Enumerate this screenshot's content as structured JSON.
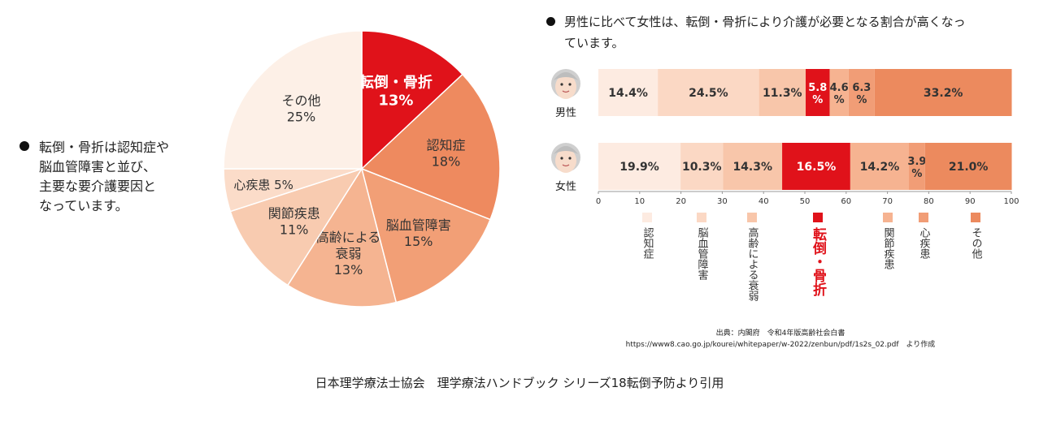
{
  "left_note": {
    "lines": [
      "転倒・骨折は認知症や",
      "脳血管障害と並び、",
      "主要な要介護要因と",
      "なっています。"
    ]
  },
  "right_title": {
    "line1": "男性に比べて女性は、転倒・骨折により介護が必要となる割合が高くなっ",
    "line2": "ています。"
  },
  "source": {
    "line1": "出典：内閣府　令和4年版高齢社会白書",
    "line2": "https://www8.cao.go.jp/kourei/whitepaper/w-2022/zenbun/pdf/1s2s_02.pdf　より作成"
  },
  "citation": "日本理学療法士協会　理学療法ハンドブック シリーズ18転倒予防より引用",
  "chart_data": [
    {
      "type": "pie",
      "slices": [
        {
          "label": "転倒・骨折",
          "value": 13,
          "display": "13%",
          "color": "#e0121a",
          "text_color": "#ffffff"
        },
        {
          "label": "認知症",
          "value": 18,
          "display": "18%",
          "color": "#ee8a5f",
          "text_color": "#333333"
        },
        {
          "label": "脳血管障害",
          "value": 15,
          "display": "15%",
          "color": "#f29f76",
          "text_color": "#333333"
        },
        {
          "label": "高齢による衰弱",
          "label_lines": [
            "高齢による",
            "衰弱"
          ],
          "value": 13,
          "display": "13%",
          "color": "#f5b491",
          "text_color": "#333333"
        },
        {
          "label": "関節疾患",
          "value": 11,
          "display": "11%",
          "color": "#f8cbb0",
          "text_color": "#333333"
        },
        {
          "label": "心疾患",
          "value": 5,
          "display": "心疾患 5%",
          "color": "#fbdcc9",
          "text_color": "#333333"
        },
        {
          "label": "その他",
          "value": 25,
          "display": "25%",
          "color": "#fdf0e7",
          "text_color": "#333333"
        }
      ]
    },
    {
      "type": "bar",
      "orientation": "horizontal",
      "stacked": true,
      "categories": [
        "男性",
        "女性"
      ],
      "xlim": [
        0,
        100
      ],
      "xticks": [
        0,
        10,
        20,
        30,
        40,
        50,
        60,
        70,
        80,
        90,
        100
      ],
      "series": [
        {
          "name": "認知症",
          "values": [
            14.4,
            19.9
          ],
          "color": "#fdebe1"
        },
        {
          "name": "脳血管障害",
          "values": [
            24.5,
            10.3
          ],
          "color": "#fbd8c4"
        },
        {
          "name": "高齢による衰弱",
          "values": [
            11.3,
            14.3
          ],
          "color": "#f8c6aa"
        },
        {
          "name": "転倒・骨折",
          "values": [
            5.8,
            16.5
          ],
          "color": "#e0121a"
        },
        {
          "name": "関節疾患",
          "values": [
            4.6,
            14.2
          ],
          "color": "#f6b391"
        },
        {
          "name": "心疾患",
          "values": [
            6.3,
            3.9
          ],
          "color": "#f19d76"
        },
        {
          "name": "その他",
          "values": [
            33.2,
            21.0
          ],
          "color": "#ec8a5e"
        }
      ],
      "bar_labels": [
        [
          "14.4%",
          "24.5%",
          "11.3%",
          [
            "5.8",
            "%"
          ],
          [
            "4.6",
            "%"
          ],
          [
            "6.3",
            "%"
          ],
          "33.2%"
        ],
        [
          "19.9%",
          "10.3%",
          "14.3%",
          "16.5%",
          "14.2%",
          [
            "3.9",
            "%"
          ],
          "21.0%"
        ]
      ],
      "legend_placement": "bottom"
    }
  ]
}
